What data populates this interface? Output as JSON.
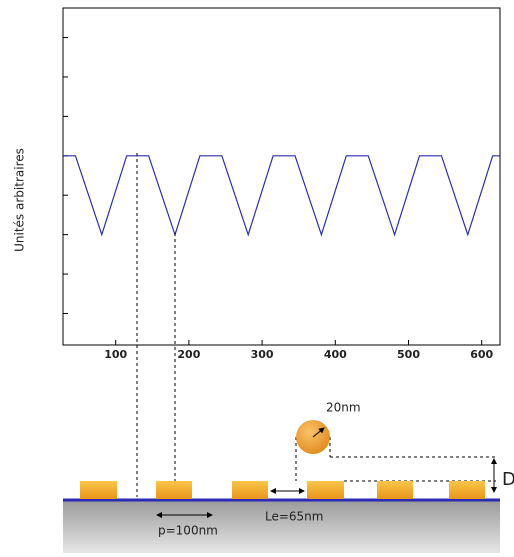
{
  "chart_data": {
    "type": "line",
    "y_label": "Unités arbitraires",
    "x": [
      28,
      45,
      81,
      115,
      145,
      181,
      215,
      245,
      281,
      315,
      345,
      381,
      415,
      445,
      481,
      515,
      545,
      581,
      615,
      625
    ],
    "series": [
      {
        "color": "#2b2fa8",
        "values": [
          5,
          5,
          3,
          5,
          5,
          3,
          5,
          5,
          3,
          5,
          5,
          3,
          5,
          5,
          3,
          5,
          5,
          3,
          5,
          5
        ]
      }
    ],
    "xlim": [
      28,
      625
    ],
    "xticks": [
      100,
      200,
      300,
      400,
      500,
      600
    ],
    "ylim": [
      0.2,
      8.75
    ],
    "yticks": [
      1,
      2,
      3,
      4,
      5,
      6,
      7,
      8
    ]
  },
  "diagram": {
    "particle_label": "20nm",
    "spacing_label": "Le=65nm",
    "period_label": "p=100nm",
    "height_label": "D"
  }
}
